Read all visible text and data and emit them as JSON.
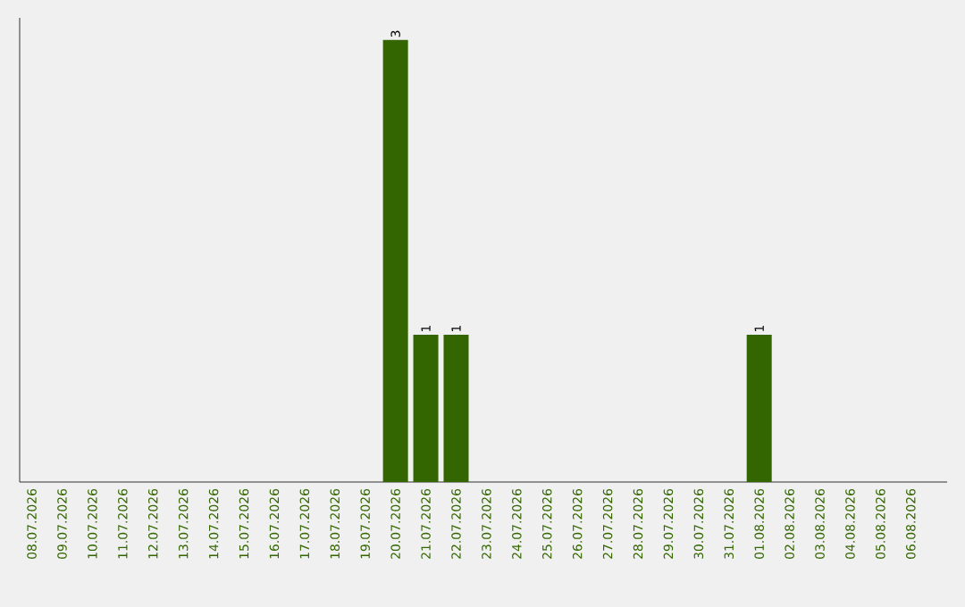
{
  "chart_data": {
    "type": "bar",
    "categories": [
      "08.07.2026",
      "09.07.2026",
      "10.07.2026",
      "11.07.2026",
      "12.07.2026",
      "13.07.2026",
      "14.07.2026",
      "15.07.2026",
      "16.07.2026",
      "17.07.2026",
      "18.07.2026",
      "19.07.2026",
      "20.07.2026",
      "21.07.2026",
      "22.07.2026",
      "23.07.2026",
      "24.07.2026",
      "25.07.2026",
      "26.07.2026",
      "27.07.2026",
      "28.07.2026",
      "29.07.2026",
      "30.07.2026",
      "31.07.2026",
      "01.08.2026",
      "02.08.2026",
      "03.08.2026",
      "04.08.2026",
      "05.08.2026",
      "06.08.2026"
    ],
    "values": [
      null,
      null,
      null,
      null,
      null,
      null,
      null,
      null,
      null,
      null,
      null,
      null,
      3,
      1,
      1,
      null,
      null,
      null,
      null,
      null,
      null,
      null,
      null,
      null,
      1,
      null,
      null,
      null,
      null,
      null
    ],
    "value_labels": [
      null,
      null,
      null,
      null,
      null,
      null,
      null,
      null,
      null,
      null,
      null,
      null,
      "3",
      "1",
      "1",
      null,
      null,
      null,
      null,
      null,
      null,
      null,
      null,
      null,
      "1",
      null,
      null,
      null,
      null,
      null
    ],
    "color": "#336600"
  }
}
